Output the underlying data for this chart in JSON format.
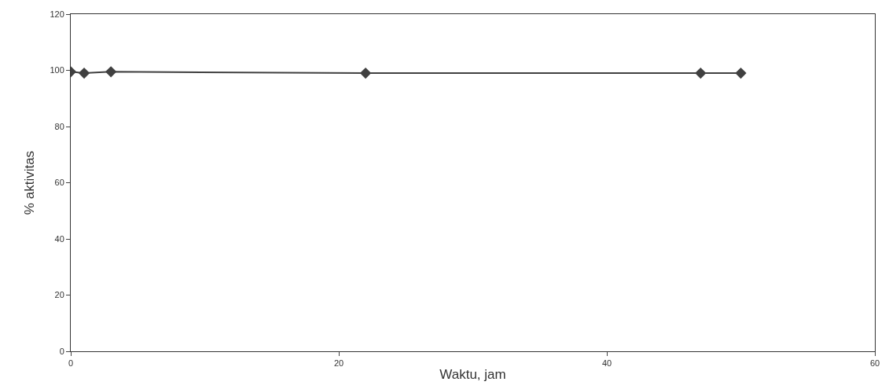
{
  "chart_data": {
    "type": "line",
    "xlabel": "Waktu, jam",
    "ylabel": "% aktivitas",
    "x": [
      0,
      1,
      3,
      22,
      47,
      50
    ],
    "series": [
      {
        "color": "#404040",
        "values": [
          99.5,
          99,
          99.5,
          99,
          99,
          99
        ]
      }
    ],
    "xlim": [
      0,
      60
    ],
    "xticks": [
      0,
      20,
      40,
      60
    ],
    "ylim": [
      0,
      120
    ],
    "yticks": [
      0,
      20,
      40,
      60,
      80,
      100,
      120
    ],
    "legend": false,
    "marker": "diamond",
    "line_style": "solid"
  }
}
